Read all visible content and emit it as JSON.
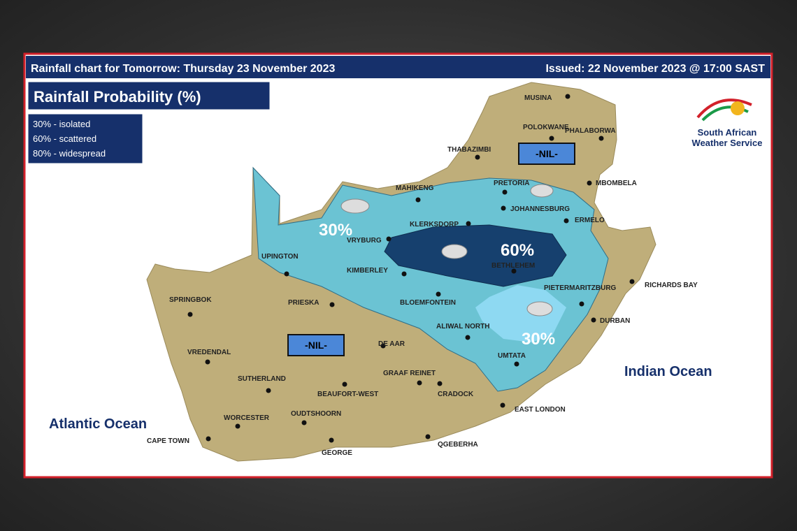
{
  "header": {
    "title": "Rainfall chart for Tomorrow: Thursday 23 November 2023",
    "issued": "Issued: 22 November 2023 @ 17:00 SAST"
  },
  "legend": {
    "title": "Rainfall Probability (%)",
    "items": [
      "30% - isolated",
      "60% - scattered",
      "80% - widespread"
    ]
  },
  "logo": {
    "line1": "South African",
    "line2": "Weather Service"
  },
  "nil_labels": [
    "-NIL-",
    "-NIL-"
  ],
  "zones": [
    "30%",
    "60%",
    "30%"
  ],
  "oceans": [
    "Atlantic Ocean",
    "Indian Ocean"
  ],
  "cities": [
    "MUSINA",
    "POLOKWANE",
    "PHALABORWA",
    "THABAZIMBI",
    "MAHIKENG",
    "PRETORIA",
    "JOHANNESBURG",
    "MBOMBELA",
    "ERMELO",
    "KLERKSDORP",
    "VRYBURG",
    "UPINGTON",
    "BETHLEHEM",
    "KIMBERLEY",
    "PIETERMARITZBURG",
    "RICHARDS BAY",
    "SPRINGBOK",
    "PRIESKA",
    "BLOEMFONTEIN",
    "DURBAN",
    "ALIWAL NORTH",
    "DE AAR",
    "VREDENDAL",
    "UMTATA",
    "SUTHERLAND",
    "GRAAF REINET",
    "BEAUFORT-WEST",
    "CRADOCK",
    "EAST LONDON",
    "OUDTSHOORN",
    "WORCESTER",
    "CAPE TOWN",
    "QGEBERHA",
    "GEORGE"
  ]
}
